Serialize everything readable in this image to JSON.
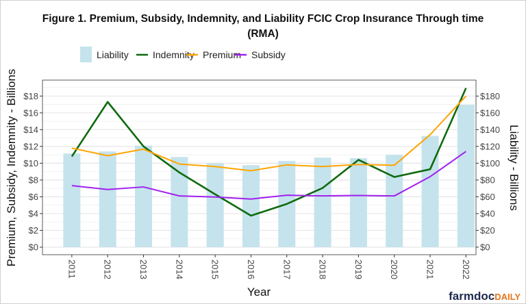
{
  "chart_data": {
    "type": "bar+line",
    "title": "Figure 1. Premium, Subsidy, Indemnity, and Liability FCIC Crop Insurance Through time",
    "subtitle": "(RMA)",
    "xlabel": "Year",
    "ylabel": "Premium, Subsidy, Indemnity - Billions",
    "y2label": "Liability - Billions",
    "categories": [
      "2011",
      "2012",
      "2013",
      "2014",
      "2015",
      "2016",
      "2017",
      "2018",
      "2019",
      "2020",
      "2021",
      "2022"
    ],
    "ylim": [
      -0.9,
      19.9
    ],
    "yticks": [
      "$0",
      "$2",
      "$4",
      "$6",
      "$8",
      "$10",
      "$12",
      "$14",
      "$16",
      "$18"
    ],
    "y2lim": [
      -9,
      199
    ],
    "y2ticks": [
      "$0",
      "$20",
      "$40",
      "$60",
      "$80",
      "$100",
      "$120",
      "$140",
      "$160",
      "$180"
    ],
    "grid": true,
    "legend_position": "top",
    "bars": {
      "name": "Liability",
      "axis": "right",
      "color": "#c5e3ec",
      "values": [
        111.6,
        114,
        121,
        107.4,
        100,
        97.7,
        102.6,
        106.7,
        106,
        110,
        132.4,
        169.6
      ]
    },
    "series": [
      {
        "name": "Indemnity",
        "color": "#0e6a0e",
        "values": [
          10.8,
          17.3,
          12.0,
          8.9,
          6.3,
          3.75,
          5.15,
          7.05,
          10.4,
          8.36,
          9.28,
          18.95
        ]
      },
      {
        "name": "Premium",
        "color": "#ffa500",
        "values": [
          11.8,
          10.9,
          11.67,
          9.9,
          9.6,
          9.1,
          9.8,
          9.6,
          9.85,
          9.75,
          13.4,
          18.0
        ]
      },
      {
        "name": "Subsidy",
        "color": "#a020f0",
        "values": [
          7.33,
          6.87,
          7.17,
          6.1,
          5.97,
          5.73,
          6.19,
          6.1,
          6.16,
          6.1,
          8.4,
          11.4
        ]
      }
    ]
  },
  "logo": {
    "part1": "farmdoc",
    "part2": "DAILY",
    "color1": "#1f2a4d",
    "color2": "#e8731a"
  }
}
